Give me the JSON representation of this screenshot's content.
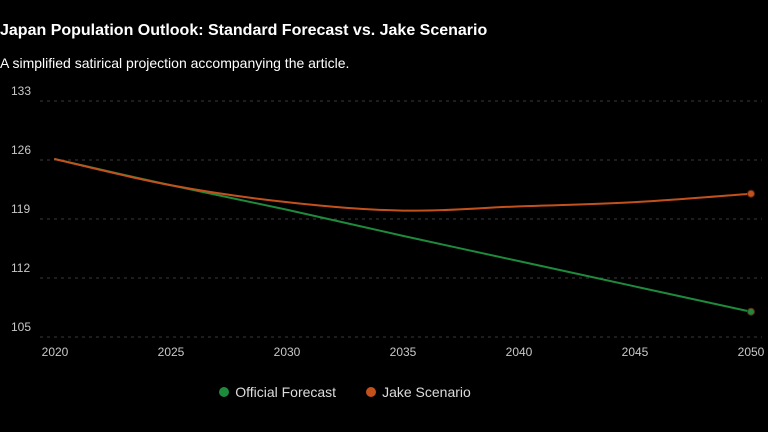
{
  "title": "Japan Population Outlook: Standard Forecast vs. Jake Scenario",
  "subtitle": "A simplified satirical projection accompanying the article.",
  "colors": {
    "background": "#000000",
    "grid": "#3a3a3a",
    "tick_text": "#c8c8c8",
    "official": "#1e8a3c",
    "jake": "#c4511c"
  },
  "chart_data": {
    "type": "line",
    "title": "Japan Population Outlook: Standard Forecast vs. Jake Scenario",
    "subtitle": "A simplified satirical projection accompanying the article.",
    "x": [
      2020,
      2025,
      2030,
      2035,
      2040,
      2045,
      2050
    ],
    "x_ticks": [
      "2020",
      "2025",
      "2030",
      "2035",
      "2040",
      "2045",
      "2050"
    ],
    "y_ticks": [
      "105",
      "112",
      "119",
      "126",
      "133"
    ],
    "ylim": [
      105,
      133
    ],
    "xlim": [
      2020,
      2050
    ],
    "grid": true,
    "legend_position": "bottom",
    "series": [
      {
        "name": "Official Forecast",
        "color": "#1e8a3c",
        "values": [
          126.1,
          123.0,
          120.1,
          117.0,
          114.0,
          111.0,
          108.0
        ]
      },
      {
        "name": "Jake Scenario",
        "color": "#c4511c",
        "values": [
          126.1,
          123.0,
          121.0,
          120.0,
          120.5,
          121.0,
          122.0
        ]
      }
    ]
  }
}
